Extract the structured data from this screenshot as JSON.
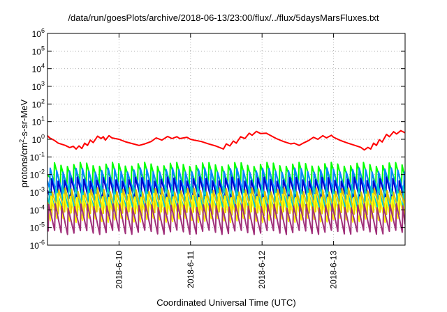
{
  "chart_data": {
    "type": "line",
    "title": "/data/run/goesPlots/archive/2018-06-13/23:00/flux/../flux/5daysMarsFluxes.txt",
    "xlabel": "Coordinated Universal Time (UTC)",
    "ylabel": {
      "prefix": "protons/cm",
      "sup": "2",
      "suffix": "-s-sr-MeV"
    },
    "y_scale": "log",
    "ylim": [
      "1e-6",
      "1e6"
    ],
    "y_ticks": [
      {
        "base": "10",
        "exp": "-6"
      },
      {
        "base": "10",
        "exp": "-5"
      },
      {
        "base": "10",
        "exp": "-4"
      },
      {
        "base": "10",
        "exp": "-3"
      },
      {
        "base": "10",
        "exp": "-2"
      },
      {
        "base": "10",
        "exp": "-1"
      },
      {
        "base": "10",
        "exp": "0"
      },
      {
        "base": "10",
        "exp": "1"
      },
      {
        "base": "10",
        "exp": "2"
      },
      {
        "base": "10",
        "exp": "3"
      },
      {
        "base": "10",
        "exp": "4"
      },
      {
        "base": "10",
        "exp": "5"
      },
      {
        "base": "10",
        "exp": "6"
      }
    ],
    "xlim": [
      "2018-06-09",
      "2018-06-14"
    ],
    "x_ticks": [
      "2018-6-10",
      "2018-6-11",
      "2018-6-12",
      "2018-6-13"
    ],
    "x_tick_dates": [
      "2018-06-10",
      "2018-06-11",
      "2018-06-12",
      "2018-06-13"
    ],
    "grid": true,
    "legend": "none",
    "series": [
      {
        "color": "#ff0000",
        "stroke_width": 2,
        "values": [
          [
            0,
            1.6
          ],
          [
            0.03,
            1.2
          ],
          [
            0.1,
            0.85
          ],
          [
            0.15,
            0.6
          ],
          [
            0.25,
            0.45
          ],
          [
            0.31,
            0.34
          ],
          [
            0.36,
            0.4
          ],
          [
            0.4,
            0.28
          ],
          [
            0.44,
            0.42
          ],
          [
            0.48,
            0.3
          ],
          [
            0.52,
            0.6
          ],
          [
            0.56,
            0.45
          ],
          [
            0.6,
            0.9
          ],
          [
            0.64,
            0.65
          ],
          [
            0.7,
            1.5
          ],
          [
            0.75,
            1.1
          ],
          [
            0.78,
            1.4
          ],
          [
            0.81,
            0.9
          ],
          [
            0.86,
            1.6
          ],
          [
            0.9,
            1.2
          ],
          [
            1.0,
            1.0
          ],
          [
            1.1,
            0.7
          ],
          [
            1.2,
            0.55
          ],
          [
            1.28,
            0.45
          ],
          [
            1.36,
            0.55
          ],
          [
            1.45,
            0.75
          ],
          [
            1.52,
            1.2
          ],
          [
            1.6,
            0.9
          ],
          [
            1.68,
            1.45
          ],
          [
            1.74,
            1.1
          ],
          [
            1.81,
            1.4
          ],
          [
            1.85,
            1.1
          ],
          [
            1.95,
            1.3
          ],
          [
            2.0,
            1.0
          ],
          [
            2.05,
            0.9
          ],
          [
            2.15,
            0.75
          ],
          [
            2.25,
            0.55
          ],
          [
            2.35,
            0.42
          ],
          [
            2.4,
            0.35
          ],
          [
            2.46,
            0.28
          ],
          [
            2.5,
            0.55
          ],
          [
            2.55,
            0.42
          ],
          [
            2.6,
            0.8
          ],
          [
            2.64,
            0.6
          ],
          [
            2.7,
            1.4
          ],
          [
            2.76,
            1.1
          ],
          [
            2.82,
            2.2
          ],
          [
            2.86,
            1.7
          ],
          [
            2.92,
            2.8
          ],
          [
            2.98,
            2.1
          ],
          [
            3.06,
            2.2
          ],
          [
            3.1,
            1.8
          ],
          [
            3.2,
            1.1
          ],
          [
            3.3,
            0.75
          ],
          [
            3.4,
            0.55
          ],
          [
            3.45,
            0.6
          ],
          [
            3.52,
            0.45
          ],
          [
            3.58,
            0.62
          ],
          [
            3.65,
            0.85
          ],
          [
            3.72,
            1.3
          ],
          [
            3.78,
            1.0
          ],
          [
            3.85,
            1.6
          ],
          [
            3.9,
            1.2
          ],
          [
            3.97,
            1.7
          ],
          [
            4.0,
            1.3
          ],
          [
            4.1,
            0.85
          ],
          [
            4.2,
            0.6
          ],
          [
            4.3,
            0.45
          ],
          [
            4.38,
            0.35
          ],
          [
            4.43,
            0.25
          ],
          [
            4.48,
            0.35
          ],
          [
            4.52,
            0.28
          ],
          [
            4.56,
            0.6
          ],
          [
            4.6,
            0.45
          ],
          [
            4.64,
            0.95
          ],
          [
            4.68,
            0.7
          ],
          [
            4.74,
            1.9
          ],
          [
            4.78,
            1.4
          ],
          [
            4.84,
            2.7
          ],
          [
            4.88,
            2.0
          ],
          [
            4.94,
            3.1
          ],
          [
            5.0,
            2.3
          ]
        ]
      },
      {
        "color": "#00ff00",
        "stroke_width": 2,
        "saw": {
          "base": "1e-2",
          "amp": 1.15,
          "period": 0.09,
          "offset": 0.0
        }
      },
      {
        "color": "#0088ff",
        "stroke_width": 2,
        "saw": {
          "base": "4.5e-3",
          "amp": 1.2,
          "period": 0.09,
          "offset": 0.03
        }
      },
      {
        "color": "#0000cc",
        "stroke_width": 2,
        "saw": {
          "base": "1.3e-3",
          "amp": 1.25,
          "period": 0.09,
          "offset": 0.05
        }
      },
      {
        "color": "#00cccc",
        "stroke_width": 2,
        "saw": {
          "base": "5e-4",
          "amp": 1.3,
          "period": 0.09,
          "offset": 0.02
        }
      },
      {
        "color": "#e0c000",
        "stroke_width": 2,
        "saw": {
          "base": "2.8e-4",
          "amp": 1.35,
          "period": 0.09,
          "offset": 0.06
        }
      },
      {
        "color": "#ffff00",
        "stroke_width": 2,
        "saw": {
          "base": "1.3e-4",
          "amp": 1.4,
          "period": 0.09,
          "offset": 0.04
        }
      },
      {
        "color": "#a0307a",
        "stroke_width": 2,
        "saw": {
          "base": "3e-5",
          "amp": 1.5,
          "period": 0.09,
          "offset": 0.01
        }
      }
    ]
  }
}
